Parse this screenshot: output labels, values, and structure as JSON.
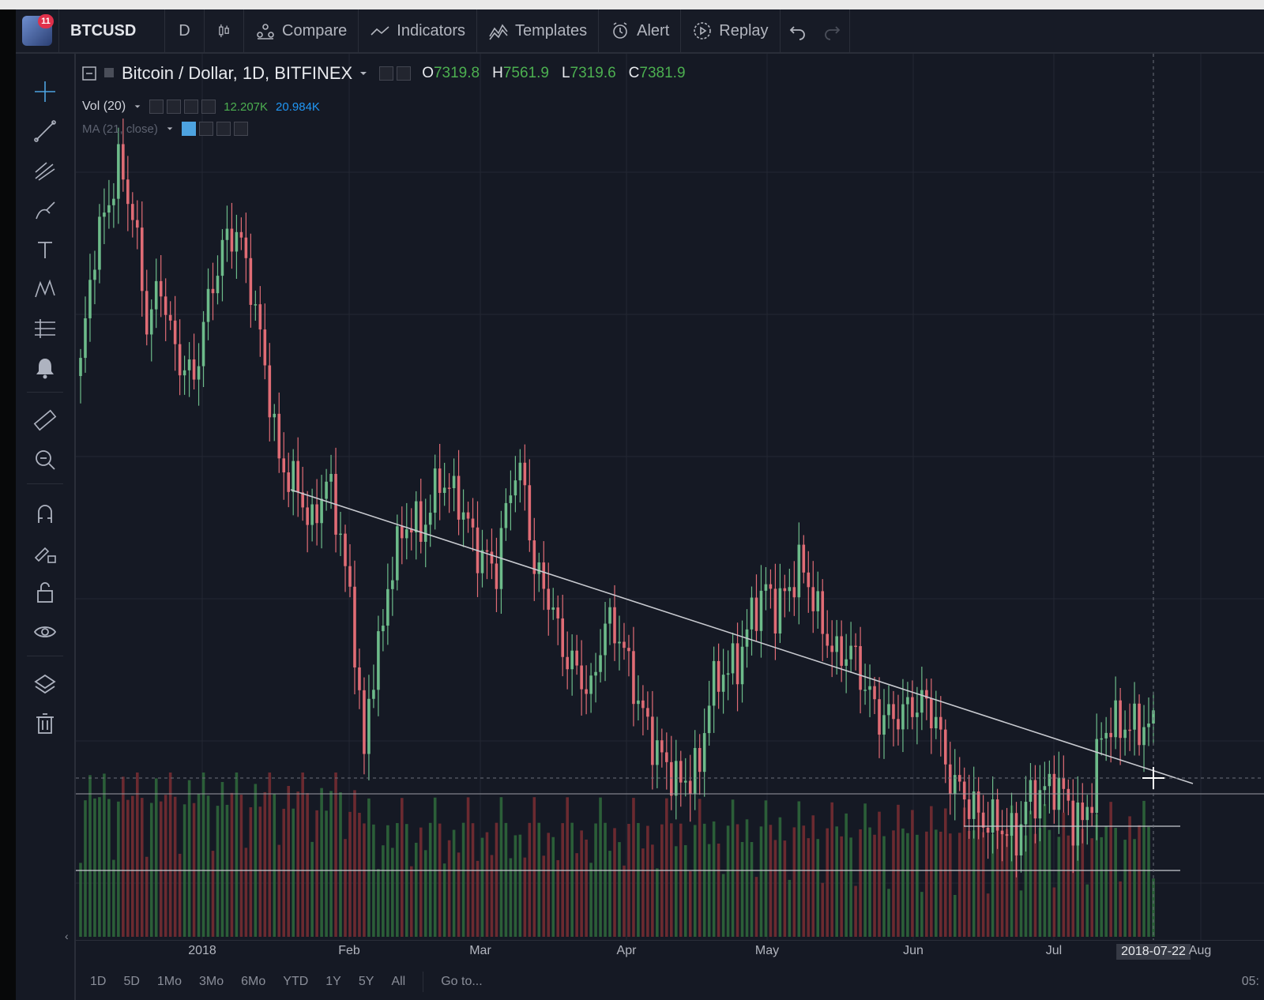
{
  "toolbar": {
    "symbol": "BTCUSD",
    "interval": "D",
    "items": [
      {
        "label": "Compare",
        "icon": "compare-icon"
      },
      {
        "label": "Indicators",
        "icon": "indicators-icon"
      },
      {
        "label": "Templates",
        "icon": "templates-icon"
      },
      {
        "label": "Alert",
        "icon": "alert-clock-icon"
      },
      {
        "label": "Replay",
        "icon": "replay-icon"
      }
    ],
    "notification_count": "11"
  },
  "legend": {
    "title": "Bitcoin / Dollar, 1D, BITFINEX",
    "open_label": "O",
    "open": "7319.8",
    "high_label": "H",
    "high": "7561.9",
    "low_label": "L",
    "low": "7319.6",
    "close_label": "C",
    "close": "7381.9",
    "volume_name": "Vol (20)",
    "volume_value": "12.207K",
    "volume_ma": "20.984K",
    "ma_name": "MA (21, close)"
  },
  "left_tools": [
    "crosshair-icon",
    "trendline-icon",
    "pitchfork-icon",
    "brush-icon",
    "text-icon",
    "pattern-icon",
    "measure-fib-icon",
    "alert-bell-icon",
    "ruler-icon",
    "zoom-in-icon",
    "magnet-icon",
    "lock-drawing-icon",
    "lock-all-icon",
    "eye-icon",
    "layers-icon",
    "trash-icon"
  ],
  "x_axis": {
    "labels": [
      "2018",
      "Feb",
      "Mar",
      "Apr",
      "May",
      "Jun",
      "Jul",
      "Aug"
    ],
    "crosshair_label": "2018-07-22"
  },
  "ranges": [
    "1D",
    "5D",
    "1Mo",
    "3Mo",
    "6Mo",
    "YTD",
    "1Y",
    "5Y",
    "All"
  ],
  "goto": "Go to...",
  "time": "05:",
  "colors": {
    "up": "#6dbb8a",
    "down": "#e06c75",
    "background": "#151924",
    "grid": "#232733",
    "trendline": "#c8cad0"
  },
  "chart_data": {
    "type": "candlestick",
    "symbol": "BTCUSD",
    "timeframe": "1D",
    "date_range": [
      "2017-12-07",
      "2018-07-22"
    ],
    "last_bar": {
      "date": "2018-07-22",
      "open": 7319.8,
      "high": 7561.9,
      "low": 7319.6,
      "close": 7381.9
    },
    "trendline": {
      "from_date": "2018-01-14",
      "to_date": "2018-07-28"
    },
    "horizontal_lines": "three horizontal support/resistance lines"
  }
}
